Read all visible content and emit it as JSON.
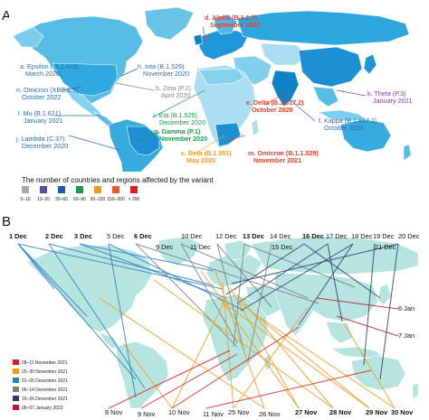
{
  "panel_a": {
    "letter": "A",
    "variants": [
      {
        "label": "d. Alpha (B.1.1.7)",
        "date": "September 2020",
        "color": "#e8412b",
        "bold": true
      },
      {
        "label": "a. Epsilon ( B.1.429)",
        "date": "March 2020",
        "color": "#2f6db0",
        "bold": false
      },
      {
        "label": "h. Iota (B.1.526)",
        "date": "November 2020",
        "color": "#2f6db0",
        "bold": false
      },
      {
        "label": "b. Zeta (P.2)",
        "date": "April 2020",
        "color": "#8a8a8a",
        "bold": false
      },
      {
        "label": "n. Omicron (XBB.1.5)",
        "date": "October 2022",
        "color": "#2f6db0",
        "bold": false
      },
      {
        "label": "k. Theta (P.3)",
        "date": "January 2021",
        "color": "#7b3aa6",
        "bold": false
      },
      {
        "label": "e. Delta (B.1.617.2)",
        "date": "October 2020",
        "color": "#e8412b",
        "bold": true
      },
      {
        "label": "l. Mu (B.1.621)",
        "date": "January 2021",
        "color": "#2f6db0",
        "bold": false
      },
      {
        "label": "i. Eta (B.1.525)",
        "date": "December 2020",
        "color": "#1a9a4a",
        "bold": false
      },
      {
        "label": "f. Kappa (B.1.617.1)",
        "date": "October 2020",
        "color": "#2f6db0",
        "bold": false
      },
      {
        "label": "j. Lambda (C.37)",
        "date": "December 2020",
        "color": "#2f6db0",
        "bold": false
      },
      {
        "label": "g. Gamma (P.1)",
        "date": "November 2020",
        "color": "#1a9a4a",
        "bold": true
      },
      {
        "label": "c. Beta (B.1.351)",
        "date": "May 2020",
        "color": "#f39a1e",
        "bold": true
      },
      {
        "label": "m. Omicron (B.1.1.529)",
        "date": "November 2021",
        "color": "#e8412b",
        "bold": true
      }
    ],
    "legend": {
      "title": "The number of countries and regions affected by the variant",
      "bins": [
        {
          "range": "0–10",
          "color": "#a7a9ac"
        },
        {
          "range": "10–20",
          "color": "#5b4a9e"
        },
        {
          "range": "30–60",
          "color": "#2159a8"
        },
        {
          "range": "60–90",
          "color": "#1a9a4a"
        },
        {
          "range": "90–150",
          "color": "#f39a1e"
        },
        {
          "range": "150–200",
          "color": "#e8592b"
        },
        {
          "range": "> 200",
          "color": "#e01d1d"
        }
      ]
    }
  },
  "panel_b": {
    "letter": "B",
    "top_dates": [
      {
        "label": "1 Dec",
        "bold": true
      },
      {
        "label": "2 Dec",
        "bold": true
      },
      {
        "label": "3 Dec",
        "bold": true
      },
      {
        "label": "5 Dec",
        "bold": false
      },
      {
        "label": "6 Dec",
        "bold": true
      },
      {
        "label": "10 Dec",
        "bold": false
      },
      {
        "label": "12 Dec",
        "bold": false
      },
      {
        "label": "13 Dec",
        "bold": true
      },
      {
        "label": "14 Dec",
        "bold": false
      },
      {
        "label": "16 Dec",
        "bold": true
      },
      {
        "label": "17 Dec",
        "bold": false
      },
      {
        "label": "18 Dec",
        "bold": false
      },
      {
        "label": "19 Dec",
        "bold": false
      },
      {
        "label": "20 Dec",
        "bold": false
      },
      {
        "label": "9 Dec",
        "bold": false
      },
      {
        "label": "11 Dec",
        "bold": false
      },
      {
        "label": "15 Dec",
        "bold": false
      },
      {
        "label": "21 Dec",
        "bold": false
      }
    ],
    "side_dates": [
      {
        "label": "6 Jan",
        "bold": false
      },
      {
        "label": "7 Jan",
        "bold": false
      }
    ],
    "bottom_dates": [
      {
        "label": "8 Nov",
        "bold": false
      },
      {
        "label": "9 Nov",
        "bold": false
      },
      {
        "label": "10 Nov",
        "bold": false
      },
      {
        "label": "11 Nov",
        "bold": false
      },
      {
        "label": "25 Nov",
        "bold": false
      },
      {
        "label": "26 Nov",
        "bold": false
      },
      {
        "label": "27 Nov",
        "bold": true
      },
      {
        "label": "28 Nov",
        "bold": true
      },
      {
        "label": "29 Nov",
        "bold": true
      },
      {
        "label": "30 Nov",
        "bold": true
      }
    ],
    "legend": [
      {
        "label": "08–11 November 2021",
        "color": "#e01d1d"
      },
      {
        "label": "25–30 November 2021",
        "color": "#f39a1e"
      },
      {
        "label": "01–05 December 2021",
        "color": "#2e7cc4"
      },
      {
        "label": "06–14 December 2021",
        "color": "#7a7f86"
      },
      {
        "label": "16–26 December 2021",
        "color": "#2a3a6e"
      },
      {
        "label": "06–07 January 2022",
        "color": "#c0182b"
      }
    ]
  }
}
